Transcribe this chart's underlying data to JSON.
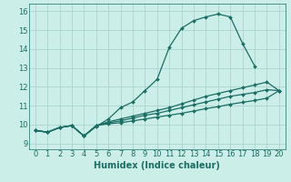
{
  "xlabel": "Humidex (Indice chaleur)",
  "ylabel": "",
  "xlim": [
    -0.5,
    20.5
  ],
  "ylim": [
    8.7,
    16.4
  ],
  "yticks": [
    9,
    10,
    11,
    12,
    13,
    14,
    15,
    16
  ],
  "xticks": [
    0,
    1,
    2,
    3,
    4,
    5,
    6,
    7,
    8,
    9,
    10,
    11,
    12,
    13,
    14,
    15,
    16,
    17,
    18,
    19,
    20
  ],
  "bg_color": "#cceee8",
  "grid_color": "#aad4cc",
  "line_color": "#1a6e63",
  "lines": [
    [
      9.7,
      9.6,
      9.85,
      9.95,
      9.4,
      9.9,
      10.3,
      10.9,
      11.2,
      11.8,
      12.4,
      14.1,
      15.1,
      15.5,
      15.7,
      15.85,
      15.7,
      14.3,
      13.1,
      null,
      null
    ],
    [
      9.7,
      9.6,
      9.85,
      9.95,
      9.4,
      9.95,
      10.15,
      10.3,
      10.45,
      10.6,
      10.75,
      10.9,
      11.1,
      11.3,
      11.5,
      11.65,
      11.8,
      11.95,
      12.1,
      12.25,
      11.8
    ],
    [
      9.7,
      9.6,
      9.85,
      9.95,
      9.4,
      9.95,
      10.1,
      10.2,
      10.35,
      10.5,
      10.6,
      10.75,
      10.9,
      11.05,
      11.2,
      11.35,
      11.5,
      11.6,
      11.7,
      11.85,
      11.8
    ],
    [
      9.7,
      9.6,
      9.85,
      9.95,
      9.4,
      9.95,
      10.05,
      10.1,
      10.2,
      10.3,
      10.4,
      10.5,
      10.6,
      10.72,
      10.85,
      10.95,
      11.08,
      11.18,
      11.28,
      11.4,
      11.8
    ]
  ],
  "tick_fontsize": 6.0,
  "xlabel_fontsize": 7.0,
  "marker_size": 2.0,
  "line_width": 0.9
}
